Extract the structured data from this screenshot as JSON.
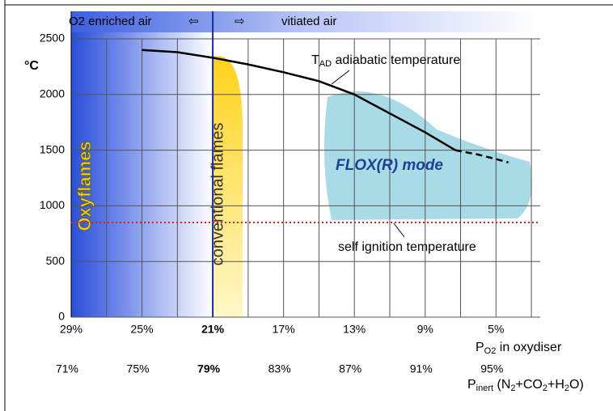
{
  "chart_data": {
    "type": "line",
    "ylabel": "°C",
    "xlim": [
      29,
      2.5
    ],
    "ylim": [
      0,
      2500
    ],
    "yticks": [
      0,
      500,
      1000,
      1500,
      2000,
      2500
    ],
    "xticks": [
      {
        "value": 29,
        "label": "29%"
      },
      {
        "value": 25,
        "label": "25%"
      },
      {
        "value": 21,
        "label": "21%"
      },
      {
        "value": 17,
        "label": "17%"
      },
      {
        "value": 13,
        "label": "13%"
      },
      {
        "value": 9,
        "label": "9%"
      },
      {
        "value": 5,
        "label": "5%"
      }
    ],
    "inert_tick_labels": [
      "71%",
      "75%",
      "79%",
      "83%",
      "87%",
      "91%",
      "95%"
    ],
    "bold_tick_index": 2,
    "xgrid": [
      27,
      25,
      23,
      21,
      19,
      17,
      15,
      13,
      11,
      9,
      7,
      5,
      3
    ],
    "grid": true,
    "series": [
      {
        "color": "#000000",
        "dashed": false,
        "x": [
          25,
          23,
          21,
          19,
          17,
          15,
          13,
          11,
          9,
          7.3
        ],
        "values": [
          2400,
          2380,
          2330,
          2270,
          2200,
          2120,
          2000,
          1830,
          1660,
          1500
        ]
      },
      {
        "color": "#000000",
        "dashed": true,
        "x": [
          7.3,
          6,
          5,
          4.3
        ],
        "values": [
          1500,
          1460,
          1420,
          1390
        ]
      }
    ],
    "self_ignition_value": 850,
    "self_ignition_color": "#e0201a",
    "top_left_label": "O2 enriched air",
    "top_right_label": "vitiated air",
    "left_arrow": "⇦",
    "right_arrow": "⇨",
    "oxyflames_label": "Oxyflames",
    "conventional_label": "conventional flames",
    "flox_label": "FLOX(R) mode",
    "self_ignition_label": "self ignition  temperature",
    "tad_label": [
      {
        "text": "T",
        "sub": false
      },
      {
        "text": "AD",
        "sub": true
      },
      {
        "text": " adiabatic temperature",
        "sub": false
      }
    ],
    "xlabel": [
      {
        "text": "P",
        "sub": false
      },
      {
        "text": "O2",
        "sub": true
      },
      {
        "text": " in oxydiser",
        "sub": false
      }
    ],
    "x2label": [
      {
        "text": "P",
        "sub": false
      },
      {
        "text": "inert",
        "sub": true
      },
      {
        "text": " (N",
        "sub": false
      },
      {
        "text": "2",
        "sub": true
      },
      {
        "text": "+CO",
        "sub": false
      },
      {
        "text": "2",
        "sub": true
      },
      {
        "text": "+H",
        "sub": false
      },
      {
        "text": "2",
        "sub": true
      },
      {
        "text": "O)",
        "sub": false
      }
    ]
  }
}
